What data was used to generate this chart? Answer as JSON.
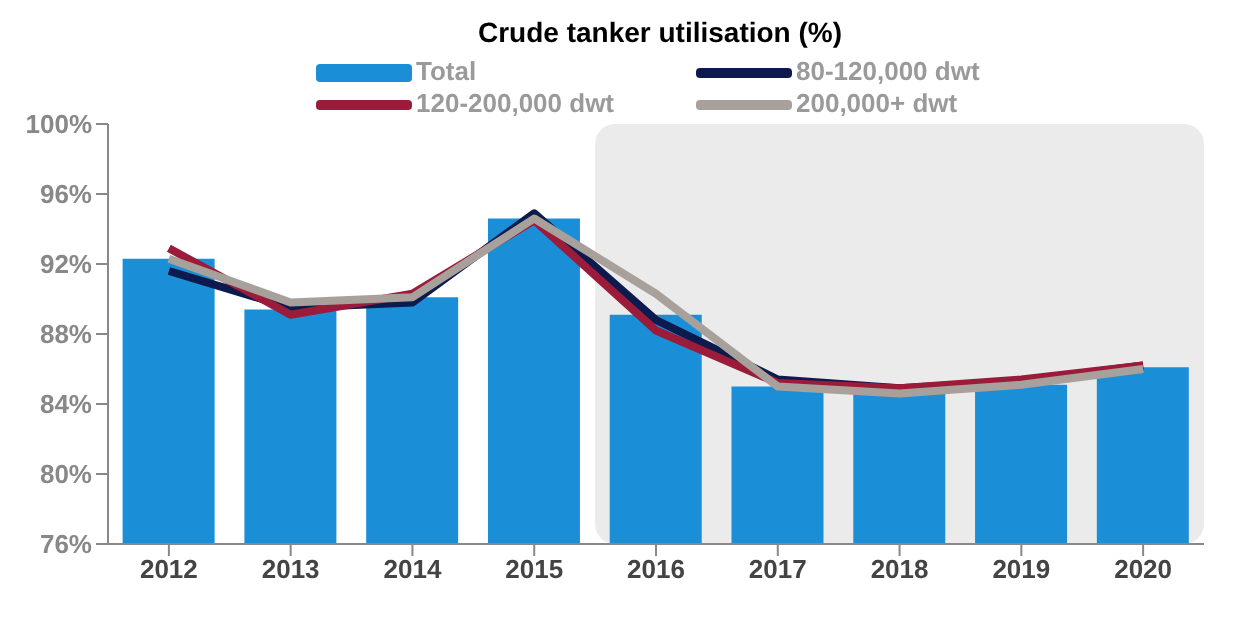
{
  "chart_data": {
    "type": "bar",
    "title": "Crude tanker utilisation (%)",
    "categories": [
      "2012",
      "2013",
      "2014",
      "2015",
      "2016",
      "2017",
      "2018",
      "2019",
      "2020"
    ],
    "series": [
      {
        "name": "Total",
        "color": "#1a8fd8",
        "values": [
          92.3,
          89.4,
          90.1,
          94.6,
          89.1,
          85.0,
          84.8,
          85.1,
          86.1
        ]
      },
      {
        "name": "80-120,000 dwt",
        "type": "line",
        "color": "#0d1a4d",
        "values": [
          91.6,
          89.5,
          89.8,
          94.9,
          88.8,
          85.4,
          84.9,
          85.3,
          86.2
        ]
      },
      {
        "name": "120-200,000 dwt",
        "type": "line",
        "color": "#9b1b3a",
        "values": [
          92.9,
          89.1,
          90.3,
          94.5,
          88.2,
          85.2,
          84.9,
          85.4,
          86.2
        ]
      },
      {
        "name": "200,000+ dwt",
        "type": "line",
        "color": "#a8a19b",
        "values": [
          92.3,
          89.8,
          90.1,
          94.6,
          90.3,
          85.0,
          84.6,
          85.1,
          86.0
        ]
      }
    ],
    "ylim": [
      76,
      100
    ],
    "yticks": [
      {
        "value": 76,
        "label": "76%"
      },
      {
        "value": 80,
        "label": "80%"
      },
      {
        "value": 84,
        "label": "84%"
      },
      {
        "value": 88,
        "label": "88%"
      },
      {
        "value": 92,
        "label": "92%"
      },
      {
        "value": 96,
        "label": "96%"
      },
      {
        "value": 100,
        "label": "100%"
      }
    ],
    "bands": [
      {
        "axis": "x",
        "from": "2016",
        "to": "2020",
        "color": "#ebebeb"
      }
    ],
    "grid": false,
    "legend": "top",
    "marker": "none",
    "line_style": "solid"
  }
}
